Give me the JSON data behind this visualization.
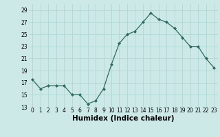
{
  "x": [
    0,
    1,
    2,
    3,
    4,
    5,
    6,
    7,
    8,
    9,
    10,
    11,
    12,
    13,
    14,
    15,
    16,
    17,
    18,
    19,
    20,
    21,
    22,
    23
  ],
  "y": [
    17.5,
    16.0,
    16.5,
    16.5,
    16.5,
    15.0,
    15.0,
    13.5,
    14.0,
    16.0,
    20.0,
    23.5,
    25.0,
    25.5,
    27.0,
    28.5,
    27.5,
    27.0,
    26.0,
    24.5,
    23.0,
    23.0,
    21.0,
    19.5
  ],
  "line_color": "#2e6b5e",
  "marker": "D",
  "marker_size": 2.0,
  "bg_color": "#cce9e8",
  "grid_color": "#b0d8d6",
  "xlabel": "Humidex (Indice chaleur)",
  "ylim": [
    13,
    30
  ],
  "yticks": [
    13,
    15,
    17,
    19,
    21,
    23,
    25,
    27,
    29
  ],
  "xticks": [
    0,
    1,
    2,
    3,
    4,
    5,
    6,
    7,
    8,
    9,
    10,
    11,
    12,
    13,
    14,
    15,
    16,
    17,
    18,
    19,
    20,
    21,
    22,
    23
  ],
  "tick_fontsize": 5.5,
  "xlabel_fontsize": 7.5,
  "linewidth": 0.9
}
